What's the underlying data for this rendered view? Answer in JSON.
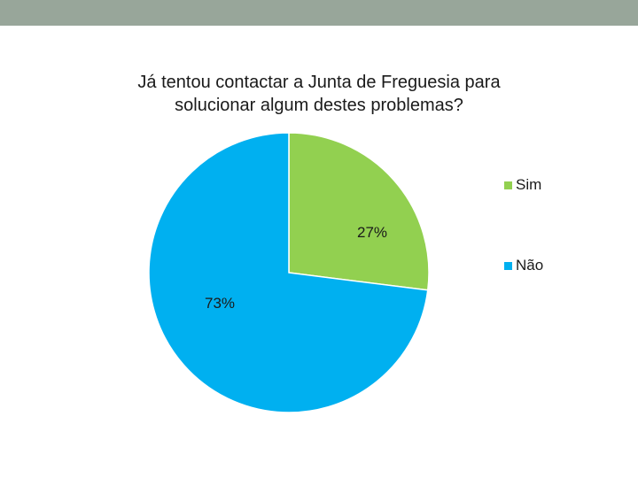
{
  "colors": {
    "top_bar": "#98a69a",
    "sim": "#92d050",
    "nao": "#00b0f0"
  },
  "chart_data": {
    "type": "pie",
    "title_lines": [
      "Já tentou contactar a Junta de Freguesia para",
      "solucionar algum destes problemas?"
    ],
    "categories": [
      "Sim",
      "Não"
    ],
    "values": [
      27,
      73
    ],
    "data_labels": [
      "27%",
      "73%"
    ],
    "legend": {
      "position": "right",
      "items": [
        "Sim",
        "Não"
      ]
    }
  }
}
